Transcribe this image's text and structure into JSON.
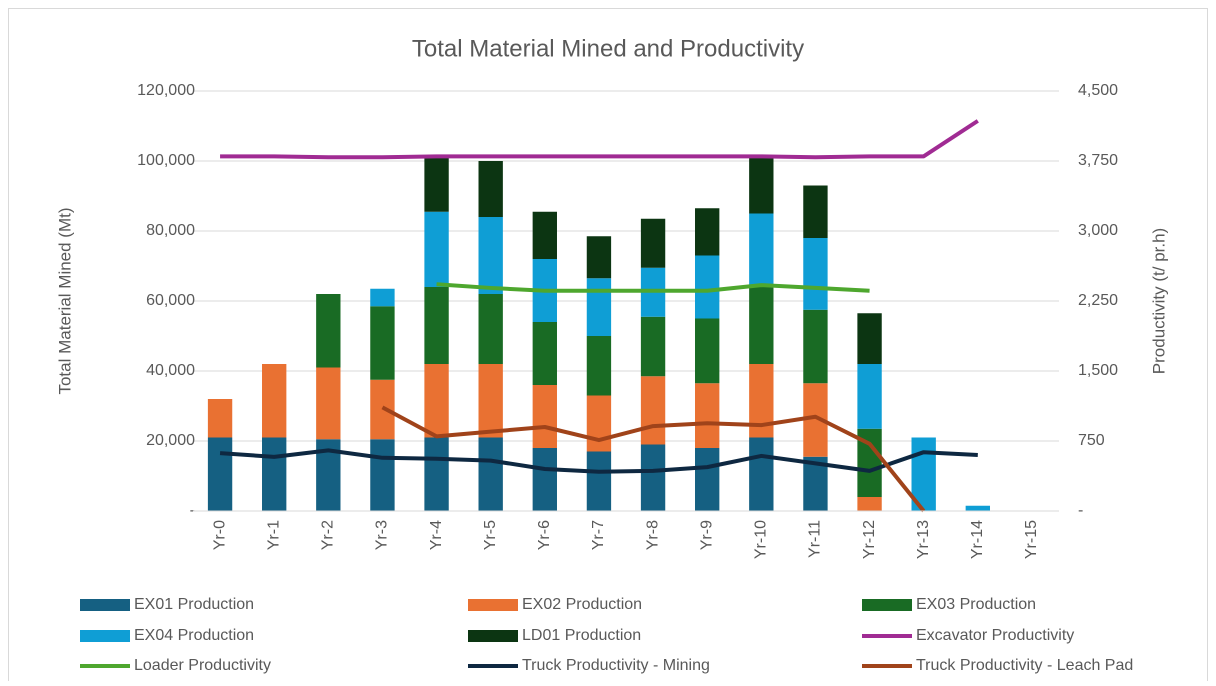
{
  "chart_data": {
    "type": "combo",
    "title": "Total Material Mined and Productivity",
    "y_label": "Total Material Mined (Mt)",
    "y2_label": "Productivity (t/ pr.h)",
    "categories": [
      "Yr-0",
      "Yr-1",
      "Yr-2",
      "Yr-3",
      "Yr-4",
      "Yr-5",
      "Yr-6",
      "Yr-7",
      "Yr-8",
      "Yr-9",
      "Yr-10",
      "Yr-11",
      "Yr-12",
      "Yr-13",
      "Yr-14",
      "Yr-15"
    ],
    "ylim": [
      0,
      120000
    ],
    "yticks": [
      {
        "value": 0,
        "label": "-"
      },
      {
        "value": 20000,
        "label": "20,000"
      },
      {
        "value": 40000,
        "label": "40,000"
      },
      {
        "value": 60000,
        "label": "60,000"
      },
      {
        "value": 80000,
        "label": "80,000"
      },
      {
        "value": 100000,
        "label": "100,000"
      },
      {
        "value": 120000,
        "label": "120,000"
      }
    ],
    "y2lim": [
      0,
      4500
    ],
    "y2ticks": [
      {
        "value": 0,
        "label": "-"
      },
      750,
      {
        "value": 1500,
        "label": "1,500"
      },
      {
        "value": 2250,
        "label": "2,250"
      },
      {
        "value": 3000,
        "label": "3,000"
      },
      {
        "value": 3750,
        "label": "3,750"
      },
      {
        "value": 4500,
        "label": "4,500"
      }
    ],
    "grid": true,
    "legend": "bottom",
    "series": [
      {
        "name": "EX01 Production",
        "type": "bar",
        "color": "#156082",
        "values": [
          21000,
          21000,
          20500,
          20500,
          21000,
          21000,
          18000,
          17000,
          19000,
          18000,
          21000,
          15500,
          0,
          0,
          0,
          0
        ]
      },
      {
        "name": "EX02 Production",
        "type": "bar",
        "color": "#e97132",
        "values": [
          11000,
          21000,
          20500,
          17000,
          21000,
          21000,
          18000,
          16000,
          19500,
          18500,
          21000,
          21000,
          4000,
          0,
          0,
          0
        ]
      },
      {
        "name": "EX03 Production",
        "type": "bar",
        "color": "#196b24",
        "values": [
          0,
          0,
          21000,
          21000,
          22000,
          20000,
          18000,
          17000,
          17000,
          18500,
          22000,
          21000,
          19500,
          0,
          0,
          0
        ]
      },
      {
        "name": "EX04 Production",
        "type": "bar",
        "color": "#0f9ed5",
        "values": [
          0,
          0,
          0,
          5000,
          21500,
          22000,
          18000,
          16500,
          14000,
          18000,
          21000,
          20500,
          18500,
          21000,
          1500,
          0
        ]
      },
      {
        "name": "LD01 Production",
        "type": "bar",
        "color": "#0c3512",
        "values": [
          0,
          0,
          0,
          0,
          16000,
          16000,
          13500,
          12000,
          14000,
          13500,
          16000,
          15000,
          14500,
          0,
          0,
          0
        ]
      },
      {
        "name": "Excavator Productivity",
        "type": "line",
        "axis": "y2",
        "color": "#a02b93",
        "values": [
          3800,
          3800,
          3790,
          3790,
          3800,
          3800,
          3800,
          3800,
          3800,
          3800,
          3800,
          3790,
          3800,
          3800,
          4180,
          null
        ]
      },
      {
        "name": "Loader Productivity",
        "type": "line",
        "axis": "y2",
        "color": "#4ea72e",
        "values": [
          null,
          null,
          null,
          null,
          2430,
          2390,
          2360,
          2360,
          2360,
          2360,
          2420,
          2390,
          2360,
          null,
          null,
          null
        ]
      },
      {
        "name": "Truck Productivity - Mining",
        "type": "line",
        "axis": "y2",
        "color": "#0e2841",
        "values": [
          620,
          580,
          650,
          570,
          560,
          540,
          450,
          420,
          430,
          470,
          590,
          510,
          430,
          630,
          600,
          null
        ]
      },
      {
        "name": "Truck Productivity - Leach Pad",
        "type": "line",
        "axis": "y2",
        "color": "#a0431a",
        "values": [
          null,
          null,
          null,
          1110,
          800,
          850,
          900,
          760,
          910,
          940,
          920,
          1010,
          720,
          0,
          null,
          null
        ]
      }
    ]
  }
}
